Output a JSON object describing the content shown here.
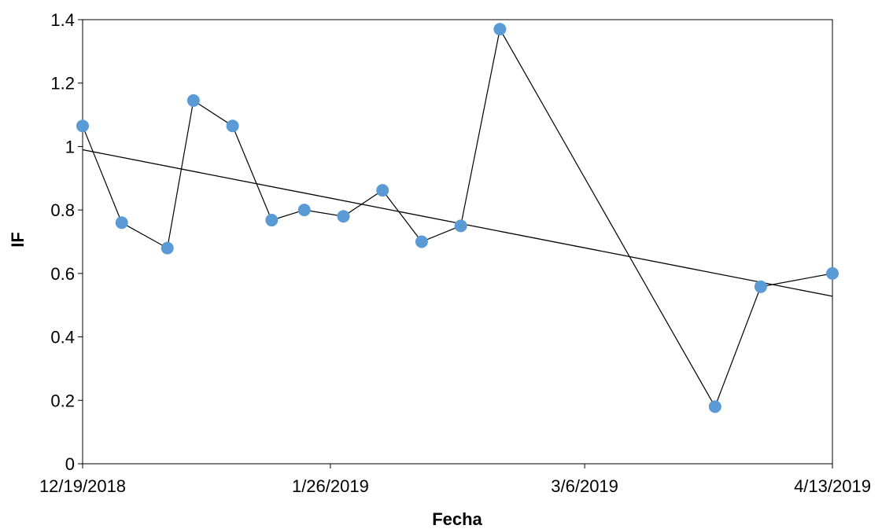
{
  "chart_data": {
    "type": "scatter",
    "title": "",
    "xlabel": "Fecha",
    "ylabel": "IF",
    "x_axis": {
      "type": "date",
      "min": "2018-12-19",
      "max": "2019-04-13",
      "ticks": [
        {
          "date": "2018-12-19",
          "label": "12/19/2018"
        },
        {
          "date": "2019-01-26",
          "label": "1/26/2019"
        },
        {
          "date": "2019-03-06",
          "label": "3/6/2019"
        },
        {
          "date": "2019-04-13",
          "label": "4/13/2019"
        }
      ]
    },
    "y_axis": {
      "min": 0,
      "max": 1.4,
      "ticks": [
        {
          "value": 0,
          "label": "0"
        },
        {
          "value": 0.2,
          "label": "0.2"
        },
        {
          "value": 0.4,
          "label": "0.4"
        },
        {
          "value": 0.6,
          "label": "0.6"
        },
        {
          "value": 0.8,
          "label": "0.8"
        },
        {
          "value": 1.0,
          "label": "1"
        },
        {
          "value": 1.2,
          "label": "1.2"
        },
        {
          "value": 1.4,
          "label": "1.4"
        }
      ]
    },
    "grid": false,
    "legend": "none",
    "series": [
      {
        "marker_color": "#5b9bd5",
        "line_color": "#000000",
        "points": [
          {
            "x": "2018-12-19",
            "y": 1.065
          },
          {
            "x": "2018-12-25",
            "y": 0.76
          },
          {
            "x": "2019-01-01",
            "y": 0.68
          },
          {
            "x": "2019-01-05",
            "y": 1.145
          },
          {
            "x": "2019-01-11",
            "y": 1.065
          },
          {
            "x": "2019-01-17",
            "y": 0.768
          },
          {
            "x": "2019-01-22",
            "y": 0.8
          },
          {
            "x": "2019-01-28",
            "y": 0.78
          },
          {
            "x": "2019-02-03",
            "y": 0.862
          },
          {
            "x": "2019-02-09",
            "y": 0.7
          },
          {
            "x": "2019-02-15",
            "y": 0.75
          },
          {
            "x": "2019-02-21",
            "y": 1.37
          },
          {
            "x": "2019-03-26",
            "y": 0.18
          },
          {
            "x": "2019-04-02",
            "y": 0.558
          },
          {
            "x": "2019-04-13",
            "y": 0.6
          }
        ]
      }
    ],
    "trendline": {
      "type": "linear",
      "color": "#000000",
      "start": {
        "x": "2018-12-19",
        "y": 0.99
      },
      "end": {
        "x": "2019-04-13",
        "y": 0.528
      }
    }
  }
}
